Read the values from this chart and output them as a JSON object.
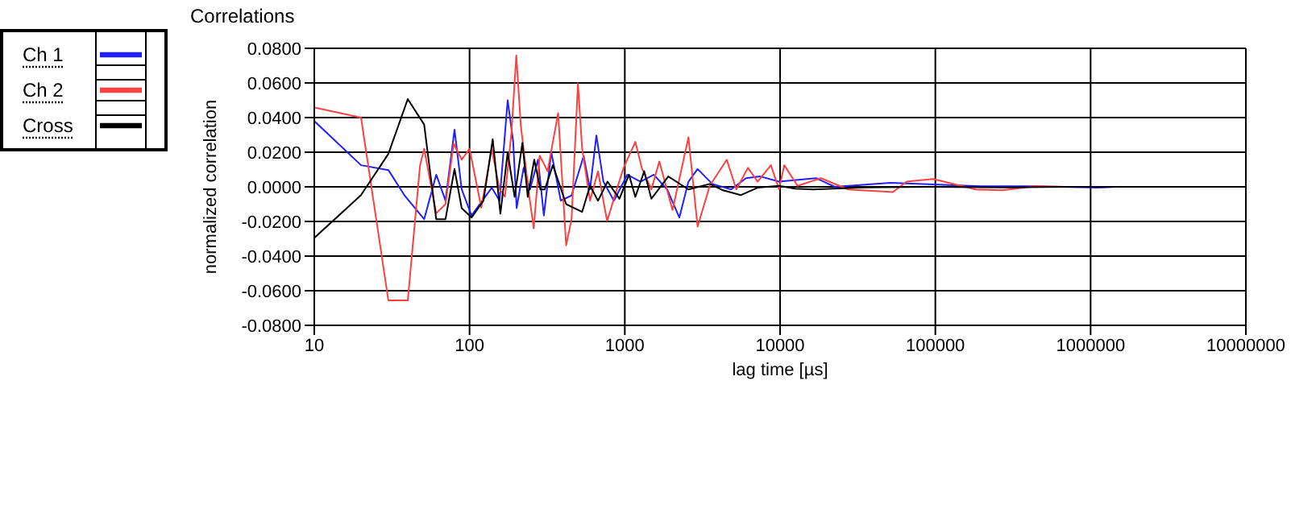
{
  "chart_data": {
    "type": "line",
    "title": "Correlations",
    "xlabel": "lag time [µs]",
    "ylabel": "normalized correlation",
    "log": "x",
    "grid": true,
    "legend": "top left",
    "marker": "none",
    "line_style": "solid",
    "xlim": [
      10,
      10000000
    ],
    "xticks": [
      10,
      100,
      1000,
      10000,
      100000,
      1000000,
      10000000
    ],
    "ylim": [
      -0.08,
      0.08
    ],
    "yticks": [
      {
        "value": -0.08,
        "label": "-0.0800"
      },
      {
        "value": -0.06,
        "label": "-0.0600"
      },
      {
        "value": -0.04,
        "label": "-0.0400"
      },
      {
        "value": -0.02,
        "label": "-0.0200"
      },
      {
        "value": 0,
        "label": "0.0000"
      },
      {
        "value": 0.02,
        "label": "0.0200"
      },
      {
        "value": 0.04,
        "label": "0.0400"
      },
      {
        "value": 0.06,
        "label": "0.0600"
      },
      {
        "value": 0.08,
        "label": "0.0800"
      }
    ],
    "series": [
      {
        "name": "Ch 1",
        "color": "#1f1fff",
        "x": [
          10,
          20,
          30,
          38,
          51,
          61,
          70,
          80,
          89,
          103,
          139,
          156,
          176,
          191,
          201,
          223,
          245,
          276,
          301,
          336,
          387,
          454,
          543,
          597,
          656,
          728,
          851,
          1037,
          1262,
          1537,
          1874,
          2245,
          2570,
          2942,
          3660,
          4840,
          6030,
          7460,
          9840,
          17070,
          22500,
          51500,
          89500,
          197000,
          434000,
          1117000,
          1470000
        ],
        "values": [
          0.038,
          0.0125,
          0.0097,
          -0.0048,
          -0.0187,
          0.007,
          -0.008,
          0.033,
          -0.0015,
          -0.0166,
          -0.0005,
          -0.008,
          0.05,
          0.026,
          -0.0123,
          0.011,
          -0.0015,
          0.0157,
          -0.0166,
          0.02,
          -0.008,
          -0.005,
          0.0178,
          -0.0015,
          0.0297,
          0.003,
          -0.008,
          0.007,
          0.003,
          0.007,
          -0.0015,
          -0.0177,
          0.003,
          0.0103,
          0.0017,
          -0.0015,
          0.005,
          0.006,
          0.003,
          0.005,
          0,
          0.0023,
          0.0015,
          0.0003,
          0.0003,
          -0.0005,
          0
        ]
      },
      {
        "name": "Ch 2",
        "color": "#ff4040",
        "x": [
          10,
          20,
          30,
          40,
          48,
          51,
          61,
          70,
          79,
          89,
          100,
          119,
          139,
          156,
          169,
          186,
          200,
          214,
          241,
          259,
          283,
          318,
          372,
          419,
          454,
          499,
          531,
          597,
          672,
          769,
          887,
          982,
          1169,
          1285,
          1482,
          1668,
          2029,
          2570,
          2942,
          3524,
          4538,
          5224,
          6209,
          7161,
          8730,
          9840,
          10640,
          12950,
          18320,
          27400,
          53200,
          65300,
          96800,
          182000,
          270000,
          434000,
          696000,
          1470000
        ],
        "values": [
          0.0458,
          0.04,
          -0.0656,
          -0.0656,
          0.0125,
          0.022,
          -0.0153,
          -0.01,
          0.025,
          0.0157,
          0.022,
          -0.012,
          0.022,
          -0.0015,
          -0.0056,
          0.031,
          0.0759,
          0.035,
          -0.0037,
          -0.024,
          0.018,
          0.009,
          0.0426,
          -0.0338,
          -0.0185,
          0.0597,
          0.022,
          -0.008,
          0.009,
          -0.0198,
          -0.0015,
          0.011,
          0.026,
          0.011,
          -0.0015,
          0.0146,
          -0.0134,
          0.0286,
          -0.023,
          0.0006,
          0.0157,
          -0.0015,
          0.011,
          0.003,
          0.0125,
          -0.0015,
          0.0125,
          0.0006,
          0.005,
          -0.0015,
          -0.003,
          0.003,
          0.0045,
          -0.0015,
          -0.002,
          0.0003,
          0,
          0
        ]
      },
      {
        "name": "Cross",
        "color": "#000000",
        "x": [
          10,
          20,
          30,
          40,
          51,
          56,
          61,
          70,
          80,
          89,
          103,
          123,
          141,
          158,
          176,
          195,
          219,
          237,
          261,
          286,
          305,
          344,
          419,
          531,
          597,
          672,
          774,
          923,
          1064,
          1169,
          1334,
          1482,
          1906,
          2570,
          3524,
          4295,
          5570,
          7161,
          9840,
          12470,
          16400,
          34700,
          89500,
          292000,
          696000,
          1470000
        ],
        "values": [
          -0.0295,
          -0.0048,
          0.019,
          0.0507,
          0.036,
          0.007,
          -0.0187,
          -0.0187,
          0.0103,
          -0.0123,
          -0.0177,
          -0.008,
          0.0275,
          -0.0155,
          0.02,
          -0.0058,
          0.0254,
          -0.0058,
          0.0157,
          -0.0015,
          -0.0015,
          0.0125,
          -0.01,
          -0.0145,
          0.0006,
          -0.008,
          0.003,
          -0.0069,
          0.007,
          -0.0058,
          0.009,
          -0.0069,
          0.006,
          -0.0015,
          0.0017,
          -0.002,
          -0.0048,
          -0.0005,
          0.0006,
          -0.001,
          -0.0015,
          -0.0003,
          0,
          -0.0003,
          0,
          0
        ]
      }
    ]
  }
}
